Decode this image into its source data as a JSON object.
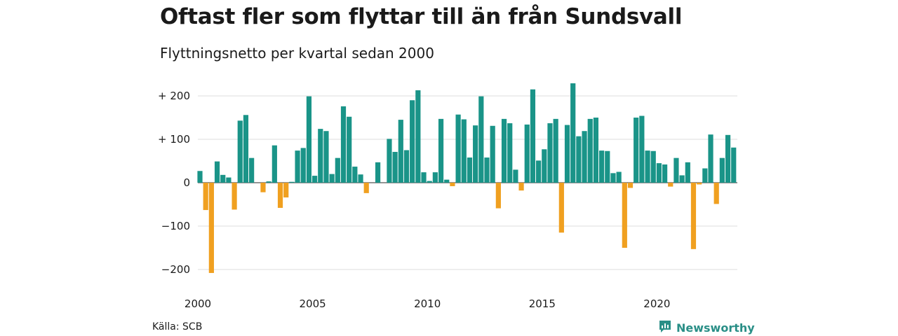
{
  "title": "Oftast fler som flyttar till än från Sundsvall",
  "subtitle": "Flyttningsnetto per kvartal sedan 2000",
  "source": "Källa: SCB",
  "brand": "Newsworthy",
  "colors": {
    "positive": "#1a9488",
    "negative": "#f0a020",
    "grid": "#dddddd",
    "brand": "#2a8f87"
  },
  "chart_data": {
    "type": "bar",
    "x_start": "2000 Q1",
    "ylim": [
      -220,
      240
    ],
    "yticks": [
      200,
      100,
      0,
      -100,
      -200
    ],
    "ytick_labels": [
      "+ 200",
      "+ 100",
      "0",
      "−100",
      "−200"
    ],
    "xtick_labels": [
      "2000",
      "2005",
      "2010",
      "2015",
      "2020"
    ],
    "grid": true,
    "values": [
      27,
      -63,
      -208,
      49,
      18,
      12,
      -62,
      143,
      156,
      57,
      0,
      -22,
      3,
      86,
      -58,
      -34,
      2,
      74,
      80,
      199,
      16,
      124,
      119,
      20,
      57,
      176,
      152,
      37,
      19,
      -24,
      0,
      47,
      0,
      101,
      71,
      145,
      75,
      190,
      213,
      24,
      4,
      24,
      147,
      7,
      -8,
      157,
      146,
      58,
      132,
      199,
      58,
      131,
      -59,
      147,
      137,
      30,
      -18,
      134,
      215,
      51,
      77,
      137,
      147,
      -115,
      133,
      229,
      107,
      119,
      147,
      150,
      74,
      73,
      22,
      25,
      -150,
      -12,
      150,
      154,
      74,
      73,
      45,
      42,
      -9,
      57,
      17,
      47,
      -153,
      -4,
      33,
      111,
      -49,
      57,
      110,
      81
    ]
  }
}
